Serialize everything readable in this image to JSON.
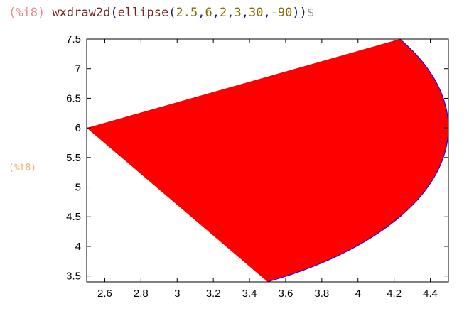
{
  "cell": {
    "input_label": "(%i8)",
    "input_code": {
      "fn": "wxdraw2d",
      "inner_fn": "ellipse",
      "args": [
        "2.5",
        "6",
        "2",
        "3",
        "30",
        "-90"
      ],
      "terminator": "$"
    },
    "output_label": "(%t8)"
  },
  "colors": {
    "fill": "#ff0000",
    "border": "#0000ff",
    "frame": "#000000",
    "grid": "#c8c8c8"
  },
  "chart_data": {
    "type": "area",
    "shape": "elliptic-sector",
    "center": [
      2.5,
      6
    ],
    "semi_axes": [
      2,
      3
    ],
    "start_angle_deg": 30,
    "sweep_angle_deg": -90,
    "xlim": [
      2.5,
      4.5
    ],
    "ylim": [
      3.4,
      7.5
    ],
    "x_ticks": [
      "2.6",
      "2.8",
      "3",
      "3.2",
      "3.4",
      "3.6",
      "3.8",
      "4",
      "4.2",
      "4.4"
    ],
    "y_ticks": [
      "3.5",
      "4",
      "4.5",
      "5",
      "5.5",
      "6",
      "6.5",
      "7",
      "7.5"
    ],
    "grid": false,
    "title": "",
    "xlabel": "",
    "ylabel": ""
  }
}
